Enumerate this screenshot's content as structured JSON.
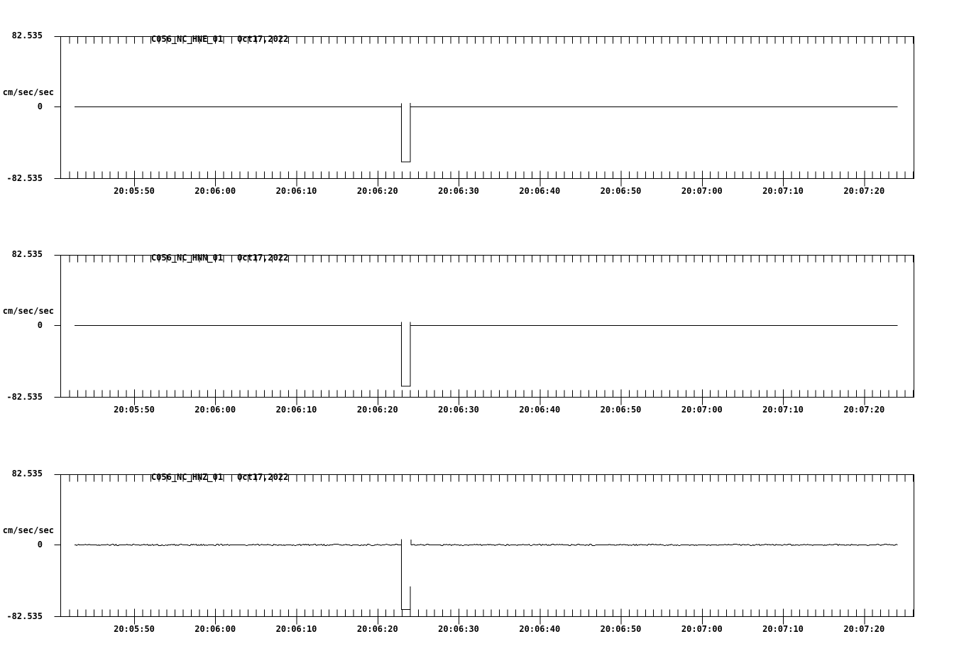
{
  "page": {
    "background": "#ffffff",
    "ink_color": "#000000"
  },
  "chart_data": [
    {
      "type": "line",
      "station": "C056_NC_HNE_01",
      "date": "Oct17,2022",
      "title": "C056_NC_HNE_01   Oct17,2022",
      "ylabel": "cm/sec/sec",
      "ylim": [
        -82.535,
        82.535
      ],
      "y_tick_labels": [
        "82.535",
        "0",
        "-82.535"
      ],
      "x_time_base": "20:05:00",
      "x_start_s": 40.9,
      "x_end_s": 146.1,
      "x_minor_tick_s": 1,
      "x_major_ticks": [
        {
          "t": 50,
          "label": "20:05:50"
        },
        {
          "t": 60,
          "label": "20:06:00"
        },
        {
          "t": 70,
          "label": "20:06:10"
        },
        {
          "t": 80,
          "label": "20:06:20"
        },
        {
          "t": 90,
          "label": "20:06:30"
        },
        {
          "t": 100,
          "label": "20:06:40"
        },
        {
          "t": 110,
          "label": "20:06:50"
        },
        {
          "t": 120,
          "label": "20:07:00"
        },
        {
          "t": 130,
          "label": "20:07:10"
        },
        {
          "t": 140,
          "label": "20:07:20"
        }
      ],
      "segments": [
        {
          "type": "polyline",
          "points": [
            [
              42.6,
              0
            ],
            [
              82.9,
              0
            ],
            [
              82.9,
              4
            ],
            [
              82.9,
              -63.5
            ],
            [
              84,
              -63.5
            ],
            [
              84,
              4.5
            ],
            [
              84,
              0
            ],
            [
              144.1,
              0
            ]
          ]
        }
      ]
    },
    {
      "type": "line",
      "station": "C056_NC_HNN_01",
      "date": "Oct17,2022",
      "title": "C056_NC_HNN_01   Oct17,2022",
      "ylabel": "cm/sec/sec",
      "ylim": [
        -82.535,
        82.535
      ],
      "y_tick_labels": [
        "82.535",
        "0",
        "-82.535"
      ],
      "x_time_base": "20:05:00",
      "x_start_s": 40.9,
      "x_end_s": 146.1,
      "x_minor_tick_s": 1,
      "x_major_ticks": [
        {
          "t": 50,
          "label": "20:05:50"
        },
        {
          "t": 60,
          "label": "20:06:00"
        },
        {
          "t": 70,
          "label": "20:06:10"
        },
        {
          "t": 80,
          "label": "20:06:20"
        },
        {
          "t": 90,
          "label": "20:06:30"
        },
        {
          "t": 100,
          "label": "20:06:40"
        },
        {
          "t": 110,
          "label": "20:06:50"
        },
        {
          "t": 120,
          "label": "20:07:00"
        },
        {
          "t": 130,
          "label": "20:07:10"
        },
        {
          "t": 140,
          "label": "20:07:20"
        }
      ],
      "segments": [
        {
          "type": "polyline",
          "points": [
            [
              42.6,
              0
            ],
            [
              82.9,
              0
            ],
            [
              82.9,
              4
            ],
            [
              82.9,
              -70
            ],
            [
              84,
              -70
            ],
            [
              84,
              4
            ],
            [
              84,
              0
            ],
            [
              144.1,
              0
            ]
          ]
        }
      ]
    },
    {
      "type": "line",
      "station": "C056_NC_HNZ_01",
      "date": "Oct17,2022",
      "title": "C056_NC_HNZ_01   Oct17,2022",
      "ylabel": "cm/sec/sec",
      "ylim": [
        -82.535,
        82.535
      ],
      "y_tick_labels": [
        "82.535",
        "0",
        "-82.535"
      ],
      "x_time_base": "20:05:00",
      "x_start_s": 40.9,
      "x_end_s": 146.1,
      "x_minor_tick_s": 1,
      "x_major_ticks": [
        {
          "t": 50,
          "label": "20:05:50"
        },
        {
          "t": 60,
          "label": "20:06:00"
        },
        {
          "t": 70,
          "label": "20:06:10"
        },
        {
          "t": 80,
          "label": "20:06:20"
        },
        {
          "t": 90,
          "label": "20:06:30"
        },
        {
          "t": 100,
          "label": "20:06:40"
        },
        {
          "t": 110,
          "label": "20:06:50"
        },
        {
          "t": 120,
          "label": "20:07:00"
        },
        {
          "t": 130,
          "label": "20:07:10"
        },
        {
          "t": 140,
          "label": "20:07:20"
        }
      ],
      "segments": [
        {
          "type": "noisy",
          "t0": 42.6,
          "t1": 82.85,
          "v": 0,
          "amp": 0.85,
          "seed": 7
        },
        {
          "type": "polyline",
          "points": [
            [
              82.9,
              6.5
            ],
            [
              82.9,
              0
            ],
            [
              82.9,
              -74.5
            ],
            [
              84,
              -74.5
            ],
            [
              84,
              -48
            ]
          ]
        },
        {
          "type": "polyline",
          "points": [
            [
              84.1,
              6
            ],
            [
              84.1,
              0
            ]
          ]
        },
        {
          "type": "noisy",
          "t0": 84.1,
          "t1": 144.1,
          "v": 0,
          "amp": 0.85,
          "seed": 11
        }
      ]
    }
  ]
}
